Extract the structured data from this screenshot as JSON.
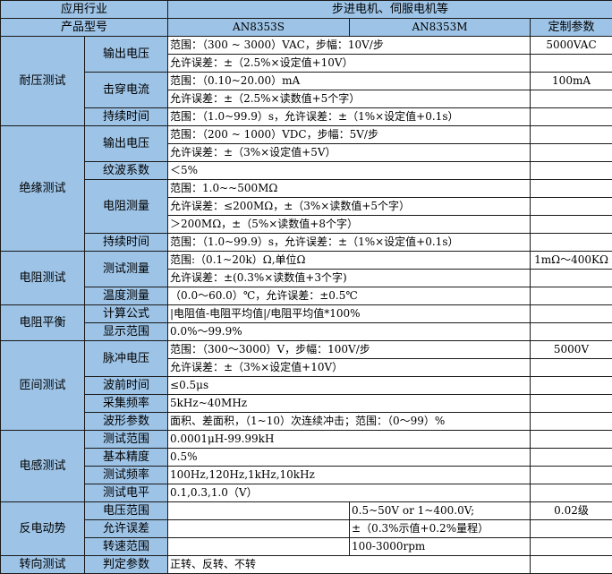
{
  "header": {
    "industry_label": "应用行业",
    "industry_value": "步进电机、伺服电机等",
    "model_label": "产品型号",
    "models": [
      "AN8353S",
      "AN8353M"
    ],
    "custom_label": "定制参数"
  },
  "colors": {
    "header_bg": "#9dc3e6",
    "border": "#1a1a1a"
  },
  "groups": [
    {
      "name": "耐压测试",
      "items": [
        {
          "label": "输出电压",
          "lines": [
            {
              "text": "范围：（300 ~ 3000）VAC，步幅：10V/步",
              "custom": "5000VAC"
            },
            {
              "text": "允许误差：±（2.5%×设定值+10V）",
              "custom": ""
            }
          ]
        },
        {
          "label": "击穿电流",
          "lines": [
            {
              "text": "范围：（0.10~20.00）mA",
              "custom": "100mA"
            },
            {
              "text": "允许误差：±（2.5%×读数值+5个字）",
              "custom": ""
            }
          ]
        },
        {
          "label": "持续时间",
          "lines": [
            {
              "text": "范围：（1.0~99.9）s，允许误差：±（1%×设定值+0.1s）",
              "custom": ""
            }
          ]
        }
      ]
    },
    {
      "name": "绝缘测试",
      "items": [
        {
          "label": "输出电压",
          "lines": [
            {
              "text": "范围：（200 ~ 1000）VDC，步幅：5V/步",
              "custom": ""
            },
            {
              "text": "允许误差：±（3%×设定值+5V）",
              "custom": ""
            }
          ]
        },
        {
          "label": "纹波系数",
          "lines": [
            {
              "text": "＜5%",
              "custom": ""
            }
          ]
        },
        {
          "label": "电阻测量",
          "lines": [
            {
              "text": "范围：1.0~~500MΩ",
              "custom": ""
            },
            {
              "text": "允许误差：≤200MΩ，±（3%×读数值+5个字）",
              "custom": ""
            },
            {
              "text": "＞200MΩ，±（5%×读数值+8个字）",
              "custom": ""
            }
          ]
        },
        {
          "label": "持续时间",
          "lines": [
            {
              "text": "范围：（1.0~99.9）s，允许误差：±（1%×设定值+0.1s）",
              "custom": ""
            }
          ]
        }
      ]
    },
    {
      "name": "电阻测试",
      "items": [
        {
          "label": "测试测量",
          "lines": [
            {
              "text": "范围:（0.1~20k）Ω,单位Ω",
              "custom": "1mΩ～400KΩ"
            },
            {
              "text": "允许误差：±(0.3%×读数值+3个字)",
              "custom": ""
            }
          ]
        },
        {
          "label": "温度测量",
          "lines": [
            {
              "text": "（0.0～60.0）℃，允许误差：±0.5℃",
              "custom": ""
            }
          ]
        }
      ]
    },
    {
      "name": "电阻平衡",
      "items": [
        {
          "label": "计算公式",
          "lines": [
            {
              "text": "|电阻值-电阻平均值|/电阻平均值*100%",
              "custom": ""
            }
          ]
        },
        {
          "label": "显示范围",
          "lines": [
            {
              "text": "0.0%～99.9%",
              "custom": ""
            }
          ]
        }
      ]
    },
    {
      "name": "匝间测试",
      "items": [
        {
          "label": "脉冲电压",
          "lines": [
            {
              "text": "范围：（300～3000）V，步幅：100V/步",
              "custom": "5000V"
            },
            {
              "text": "允许误差：±（3%×设定值+10V）",
              "custom": ""
            }
          ]
        },
        {
          "label": "波前时间",
          "lines": [
            {
              "text": "≤0.5μs",
              "custom": ""
            }
          ]
        },
        {
          "label": "采集频率",
          "lines": [
            {
              "text": "5kHz~40MHz",
              "custom": ""
            }
          ]
        },
        {
          "label": "波形参数",
          "lines": [
            {
              "text": "面积、差面积，（1~10）次连续冲击；范围：（0～99）%",
              "custom": ""
            }
          ]
        }
      ]
    },
    {
      "name": "电感测试",
      "items": [
        {
          "label": "测试范围",
          "lines": [
            {
              "text": "0.0001μH-99.99kH",
              "custom": ""
            }
          ]
        },
        {
          "label": "基本精度",
          "lines": [
            {
              "text": "0.5%",
              "custom": ""
            }
          ]
        },
        {
          "label": "测试频率",
          "lines": [
            {
              "text": "100Hz,120Hz,1kHz,10kHz",
              "custom": ""
            }
          ]
        },
        {
          "label": "测试电平",
          "lines": [
            {
              "text": "0.1,0.3,1.0（V）",
              "custom": ""
            }
          ]
        }
      ]
    },
    {
      "name": "反电动势",
      "items": [
        {
          "label": "电压范围",
          "lines": [
            {
              "s": "",
              "m": "0.5~50V or 1~400.0V;",
              "custom": "0.02级"
            }
          ]
        },
        {
          "label": "允许误差",
          "lines": [
            {
              "s": "",
              "m": "±（0.3%示值+0.2%量程）",
              "custom": ""
            }
          ]
        },
        {
          "label": "转速范围",
          "lines": [
            {
              "s": "",
              "m": "100-3000rpm",
              "custom": ""
            }
          ]
        }
      ]
    },
    {
      "name": "转向测试",
      "items": [
        {
          "label": "判定参数",
          "lines": [
            {
              "text": "正转、反转、不转",
              "custom": ""
            }
          ]
        }
      ]
    }
  ]
}
